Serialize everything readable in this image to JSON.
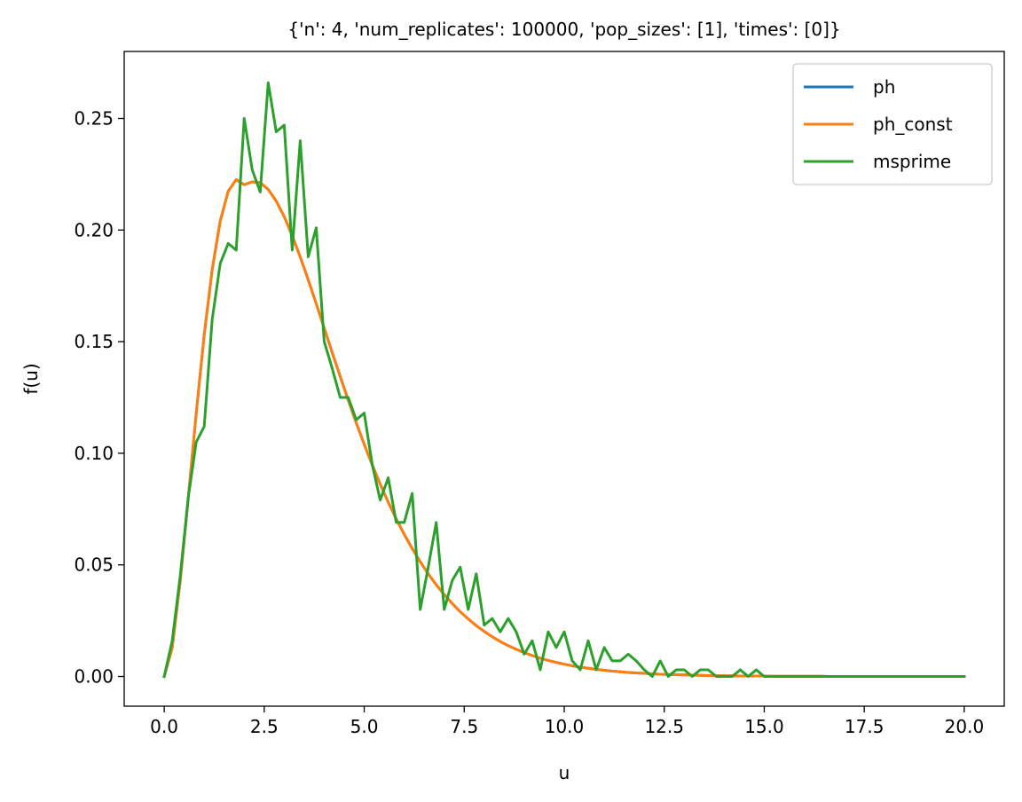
{
  "chart_data": {
    "type": "line",
    "title": "{'n': 4, 'num_replicates': 100000, 'pop_sizes': [1], 'times': [0]}",
    "xlabel": "u",
    "ylabel": "f(u)",
    "xlim": [
      -1.0,
      21.0
    ],
    "ylim": [
      -0.0133,
      0.28
    ],
    "xticks": [
      0.0,
      2.5,
      5.0,
      7.5,
      10.0,
      12.5,
      15.0,
      17.5,
      20.0
    ],
    "xtick_labels": [
      "0.0",
      "2.5",
      "5.0",
      "7.5",
      "10.0",
      "12.5",
      "15.0",
      "17.5",
      "20.0"
    ],
    "yticks": [
      0.0,
      0.05,
      0.1,
      0.15,
      0.2,
      0.25
    ],
    "ytick_labels": [
      "0.00",
      "0.05",
      "0.10",
      "0.15",
      "0.20",
      "0.25"
    ],
    "grid": false,
    "legend_position": "top-right",
    "series": [
      {
        "name": "ph",
        "color": "#1f77b4",
        "x": [
          0.0,
          0.2,
          0.4,
          0.6,
          0.8,
          1.0,
          1.2,
          1.4,
          1.6,
          1.8,
          2.0,
          2.2,
          2.4,
          2.6,
          2.8,
          3.0,
          3.2,
          3.4,
          3.6,
          3.8,
          4.0,
          4.2,
          4.4,
          4.6,
          4.8,
          5.0,
          5.2,
          5.4,
          5.6,
          5.8,
          6.0,
          6.2,
          6.4,
          6.6,
          6.8,
          7.0,
          7.2,
          7.4,
          7.6,
          7.8,
          8.0,
          8.2,
          8.4,
          8.6,
          8.8,
          9.0,
          9.2,
          9.4,
          9.6,
          9.8,
          10.0,
          10.2,
          10.4,
          10.6,
          10.8,
          11.0,
          11.2,
          11.4,
          11.6,
          11.8,
          12.0,
          12.2,
          12.4,
          12.6,
          12.8,
          13.0,
          13.2,
          13.4,
          13.6,
          13.8,
          14.0,
          14.2,
          14.4,
          14.6,
          14.8,
          15.0,
          15.2,
          15.4,
          15.6,
          15.8,
          16.0,
          16.2,
          16.4,
          16.6,
          16.8,
          17.0,
          17.2,
          17.4,
          17.6,
          17.8,
          18.0,
          18.2,
          18.4,
          18.6,
          18.8,
          19.0,
          19.2,
          19.4,
          19.6,
          19.8,
          20.0
        ],
        "y": [
          0.0,
          0.0128,
          0.0427,
          0.0797,
          0.1178,
          0.153,
          0.1823,
          0.204,
          0.2174,
          0.2226,
          0.2203,
          0.2216,
          0.2212,
          0.2182,
          0.213,
          0.206,
          0.1975,
          0.188,
          0.1777,
          0.167,
          0.1561,
          0.1451,
          0.1344,
          0.1238,
          0.1137,
          0.104,
          0.0948,
          0.0862,
          0.0781,
          0.0706,
          0.0637,
          0.0573,
          0.0514,
          0.046,
          0.0411,
          0.0367,
          0.0327,
          0.029,
          0.0258,
          0.0228,
          0.0202,
          0.0178,
          0.0157,
          0.0138,
          0.0122,
          0.0107,
          0.0094,
          0.0082,
          0.0072,
          0.0063,
          0.0055,
          0.0048,
          0.0042,
          0.0037,
          0.0032,
          0.0028,
          0.0024,
          0.0021,
          0.0018,
          0.0016,
          0.0014,
          0.0012,
          0.001,
          0.0009,
          0.0008,
          0.0007,
          0.0006,
          0.0005,
          0.0004,
          0.0004,
          0.0003,
          0.0003,
          0.0002,
          0.0002,
          0.0002,
          0.0002,
          0.0001,
          0.0001,
          0.0001,
          0.0001,
          0.0001,
          0.0001,
          0.0001,
          0.0,
          0.0,
          0.0,
          0.0,
          0.0,
          0.0,
          0.0,
          0.0,
          0.0,
          0.0,
          0.0,
          0.0,
          0.0,
          0.0,
          0.0,
          0.0,
          0.0,
          0.0
        ]
      },
      {
        "name": "ph_const",
        "color": "#ff7f0e",
        "x": [
          0.0,
          0.2,
          0.4,
          0.6,
          0.8,
          1.0,
          1.2,
          1.4,
          1.6,
          1.8,
          2.0,
          2.2,
          2.4,
          2.6,
          2.8,
          3.0,
          3.2,
          3.4,
          3.6,
          3.8,
          4.0,
          4.2,
          4.4,
          4.6,
          4.8,
          5.0,
          5.2,
          5.4,
          5.6,
          5.8,
          6.0,
          6.2,
          6.4,
          6.6,
          6.8,
          7.0,
          7.2,
          7.4,
          7.6,
          7.8,
          8.0,
          8.2,
          8.4,
          8.6,
          8.8,
          9.0,
          9.2,
          9.4,
          9.6,
          9.8,
          10.0,
          10.2,
          10.4,
          10.6,
          10.8,
          11.0,
          11.2,
          11.4,
          11.6,
          11.8,
          12.0,
          12.2,
          12.4,
          12.6,
          12.8,
          13.0,
          13.2,
          13.4,
          13.6,
          13.8,
          14.0,
          14.2,
          14.4,
          14.6,
          14.8,
          15.0,
          15.2,
          15.4,
          15.6,
          15.8,
          16.0,
          16.2,
          16.4,
          16.6,
          16.8,
          17.0,
          17.2,
          17.4,
          17.6,
          17.8,
          18.0,
          18.2,
          18.4,
          18.6,
          18.8,
          19.0,
          19.2,
          19.4,
          19.6,
          19.8,
          20.0
        ],
        "y": [
          0.0,
          0.0128,
          0.0427,
          0.0797,
          0.1178,
          0.153,
          0.1823,
          0.204,
          0.2174,
          0.2226,
          0.2203,
          0.2216,
          0.2212,
          0.2182,
          0.213,
          0.206,
          0.1975,
          0.188,
          0.1777,
          0.167,
          0.1561,
          0.1451,
          0.1344,
          0.1238,
          0.1137,
          0.104,
          0.0948,
          0.0862,
          0.0781,
          0.0706,
          0.0637,
          0.0573,
          0.0514,
          0.046,
          0.0411,
          0.0367,
          0.0327,
          0.029,
          0.0258,
          0.0228,
          0.0202,
          0.0178,
          0.0157,
          0.0138,
          0.0122,
          0.0107,
          0.0094,
          0.0082,
          0.0072,
          0.0063,
          0.0055,
          0.0048,
          0.0042,
          0.0037,
          0.0032,
          0.0028,
          0.0024,
          0.0021,
          0.0018,
          0.0016,
          0.0014,
          0.0012,
          0.001,
          0.0009,
          0.0008,
          0.0007,
          0.0006,
          0.0005,
          0.0004,
          0.0004,
          0.0003,
          0.0003,
          0.0002,
          0.0002,
          0.0002,
          0.0002,
          0.0001,
          0.0001,
          0.0001,
          0.0001,
          0.0001,
          0.0001,
          0.0001,
          0.0,
          0.0,
          0.0,
          0.0,
          0.0,
          0.0,
          0.0,
          0.0,
          0.0,
          0.0,
          0.0,
          0.0,
          0.0,
          0.0,
          0.0,
          0.0,
          0.0,
          0.0
        ]
      },
      {
        "name": "msprime",
        "color": "#2ca02c",
        "x": [
          0.0,
          0.2,
          0.4,
          0.6,
          0.8,
          1.0,
          1.2,
          1.4,
          1.6,
          1.8,
          2.0,
          2.2,
          2.4,
          2.6,
          2.8,
          3.0,
          3.2,
          3.4,
          3.6,
          3.8,
          4.0,
          4.2,
          4.4,
          4.6,
          4.8,
          5.0,
          5.2,
          5.4,
          5.6,
          5.8,
          6.0,
          6.2,
          6.4,
          6.6,
          6.8,
          7.0,
          7.2,
          7.4,
          7.6,
          7.8,
          8.0,
          8.2,
          8.4,
          8.6,
          8.8,
          9.0,
          9.2,
          9.4,
          9.6,
          9.8,
          10.0,
          10.2,
          10.4,
          10.6,
          10.8,
          11.0,
          11.2,
          11.4,
          11.6,
          11.8,
          12.0,
          12.2,
          12.4,
          12.6,
          12.8,
          13.0,
          13.2,
          13.4,
          13.6,
          13.8,
          14.0,
          14.2,
          14.4,
          14.6,
          14.8,
          15.0,
          15.2,
          15.4,
          15.6,
          15.8,
          16.0,
          16.2,
          16.4,
          16.6,
          16.8,
          17.0,
          17.2,
          17.4,
          17.6,
          17.8,
          18.0,
          18.2,
          18.4,
          18.6,
          18.8,
          19.0,
          19.2,
          19.4,
          19.6,
          19.8,
          20.0
        ],
        "y": [
          0.0,
          0.016,
          0.045,
          0.08,
          0.105,
          0.112,
          0.16,
          0.185,
          0.194,
          0.191,
          0.25,
          0.227,
          0.217,
          0.266,
          0.244,
          0.247,
          0.191,
          0.24,
          0.188,
          0.201,
          0.15,
          0.138,
          0.125,
          0.125,
          0.115,
          0.118,
          0.095,
          0.079,
          0.089,
          0.069,
          0.069,
          0.082,
          0.03,
          0.049,
          0.069,
          0.03,
          0.043,
          0.049,
          0.03,
          0.046,
          0.023,
          0.026,
          0.02,
          0.026,
          0.02,
          0.01,
          0.016,
          0.003,
          0.02,
          0.013,
          0.02,
          0.007,
          0.003,
          0.016,
          0.003,
          0.013,
          0.007,
          0.007,
          0.01,
          0.007,
          0.003,
          0.0,
          0.007,
          0.0,
          0.003,
          0.003,
          0.0,
          0.003,
          0.003,
          0.0,
          0.0,
          0.0,
          0.003,
          0.0,
          0.003,
          0.0,
          0.0,
          0.0,
          0.0,
          0.0,
          0.0,
          0.0,
          0.0,
          0.0,
          0.0,
          0.0,
          0.0,
          0.0,
          0.0,
          0.0,
          0.0,
          0.0,
          0.0,
          0.0,
          0.0,
          0.0,
          0.0,
          0.0,
          0.0,
          0.0,
          0.0
        ]
      }
    ]
  }
}
